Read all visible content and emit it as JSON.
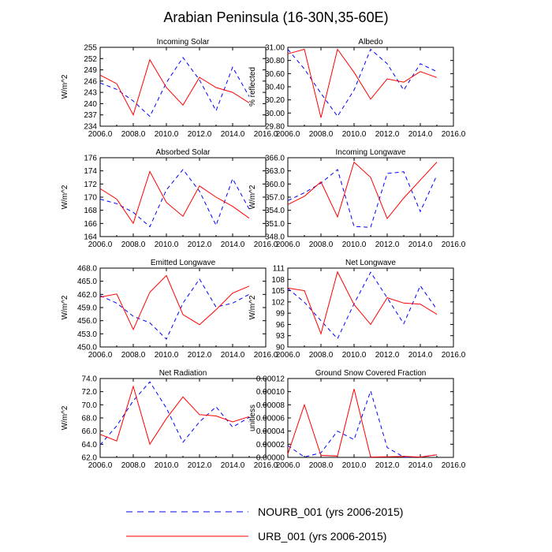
{
  "page_title": "Arabian Peninsula (16-30N,35-60E)",
  "colors": {
    "nourb": "#0000ff",
    "urb": "#ff0000",
    "axis": "#000000"
  },
  "legend": {
    "items": [
      {
        "key": "nourb",
        "label": "NOURB_001 (yrs 2006-2015)",
        "style": "dashed"
      },
      {
        "key": "urb",
        "label": "URB_001 (yrs 2006-2015)",
        "style": "solid"
      }
    ]
  },
  "chart_data": [
    {
      "type": "line",
      "title": "Incoming Solar",
      "ylabel": "W/m^2",
      "xlim": [
        2006,
        2016
      ],
      "xticks": [
        2006,
        2008,
        2010,
        2012,
        2014,
        2016
      ],
      "ylim": [
        234,
        255
      ],
      "yticks": [
        234,
        237,
        240,
        243,
        246,
        249,
        252,
        255
      ],
      "ydec": 0,
      "x": [
        2006,
        2007,
        2008,
        2009,
        2010,
        2011,
        2012,
        2013,
        2014,
        2015
      ],
      "series": [
        {
          "name": "NOURB_001 (yrs 2006-2015)",
          "values": [
            245.5,
            243.8,
            240.7,
            236.6,
            245.6,
            252.3,
            246.3,
            238.1,
            249.7,
            241.9
          ]
        },
        {
          "name": "URB_001 (yrs 2006-2015)",
          "values": [
            247.6,
            245.3,
            237.0,
            251.7,
            244.3,
            239.6,
            247.0,
            244.3,
            243.0,
            240.2
          ]
        }
      ]
    },
    {
      "type": "line",
      "title": "Albedo",
      "ylabel": "% reflected",
      "xlim": [
        2006,
        2016
      ],
      "xticks": [
        2006,
        2008,
        2010,
        2012,
        2014,
        2016
      ],
      "ylim": [
        29.8,
        31.0
      ],
      "yticks": [
        29.8,
        30.0,
        30.2,
        30.4,
        30.6,
        30.8,
        31.0
      ],
      "ydec": 2,
      "x": [
        2006,
        2007,
        2008,
        2009,
        2010,
        2011,
        2012,
        2013,
        2014,
        2015
      ],
      "series": [
        {
          "name": "NOURB_001 (yrs 2006-2015)",
          "values": [
            30.97,
            30.67,
            30.3,
            29.95,
            30.35,
            30.97,
            30.75,
            30.35,
            30.75,
            30.63
          ]
        },
        {
          "name": "URB_001 (yrs 2006-2015)",
          "values": [
            30.9,
            30.97,
            29.93,
            30.97,
            30.62,
            30.21,
            30.52,
            30.47,
            30.63,
            30.54
          ]
        }
      ]
    },
    {
      "type": "line",
      "title": "Absorbed Solar",
      "ylabel": "W/m^2",
      "xlim": [
        2006,
        2016
      ],
      "xticks": [
        2006,
        2008,
        2010,
        2012,
        2014,
        2016
      ],
      "ylim": [
        164,
        176
      ],
      "yticks": [
        164,
        166,
        168,
        170,
        172,
        174,
        176
      ],
      "ydec": 0,
      "x": [
        2006,
        2007,
        2008,
        2009,
        2010,
        2011,
        2012,
        2013,
        2014,
        2015
      ],
      "series": [
        {
          "name": "NOURB_001 (yrs 2006-2015)",
          "values": [
            169.7,
            169.0,
            167.7,
            165.5,
            171.1,
            174.2,
            170.9,
            165.7,
            172.8,
            168.2
          ]
        },
        {
          "name": "URB_001 (yrs 2006-2015)",
          "values": [
            171.3,
            169.7,
            166.0,
            173.9,
            169.2,
            167.1,
            171.7,
            170.0,
            168.6,
            166.8
          ]
        }
      ]
    },
    {
      "type": "line",
      "title": "Incoming Longwave",
      "ylabel": "W/m^2",
      "xlim": [
        2006,
        2016
      ],
      "xticks": [
        2006,
        2008,
        2010,
        2012,
        2014,
        2016
      ],
      "ylim": [
        348,
        366
      ],
      "yticks": [
        348,
        351,
        354,
        357,
        360,
        363,
        366
      ],
      "ydec": 1,
      "x": [
        2006,
        2007,
        2008,
        2009,
        2010,
        2011,
        2012,
        2013,
        2014,
        2015
      ],
      "series": [
        {
          "name": "NOURB_001 (yrs 2006-2015)",
          "values": [
            356.2,
            358.0,
            360.2,
            363.3,
            350.3,
            350.1,
            362.4,
            362.8,
            353.7,
            362.0
          ]
        },
        {
          "name": "URB_001 (yrs 2006-2015)",
          "values": [
            355.3,
            357.2,
            360.5,
            352.5,
            365.0,
            361.5,
            352.1,
            356.8,
            360.9,
            365.0
          ]
        }
      ]
    },
    {
      "type": "line",
      "title": "Emitted Longwave",
      "ylabel": "W/m^2",
      "xlim": [
        2006,
        2016
      ],
      "xticks": [
        2006,
        2008,
        2010,
        2012,
        2014,
        2016
      ],
      "ylim": [
        450,
        468
      ],
      "yticks": [
        450,
        453,
        456,
        459,
        462,
        465,
        468
      ],
      "ydec": 1,
      "x": [
        2006,
        2007,
        2008,
        2009,
        2010,
        2011,
        2012,
        2013,
        2014,
        2015
      ],
      "series": [
        {
          "name": "NOURB_001 (yrs 2006-2015)",
          "values": [
            461.7,
            460.0,
            457.0,
            455.5,
            451.8,
            460.0,
            465.5,
            459.1,
            460.0,
            462.0
          ]
        },
        {
          "name": "URB_001 (yrs 2006-2015)",
          "values": [
            461.4,
            462.1,
            454.0,
            462.5,
            466.3,
            457.4,
            455.1,
            458.5,
            462.3,
            463.9
          ]
        }
      ]
    },
    {
      "type": "line",
      "title": "Net Longwave",
      "ylabel": "W/m^2",
      "xlim": [
        2006,
        2016
      ],
      "xticks": [
        2006,
        2008,
        2010,
        2012,
        2014,
        2016
      ],
      "ylim": [
        90,
        111
      ],
      "yticks": [
        90,
        93,
        96,
        99,
        102,
        105,
        108,
        111
      ],
      "ydec": 0,
      "x": [
        2006,
        2007,
        2008,
        2009,
        2010,
        2011,
        2012,
        2013,
        2014,
        2015
      ],
      "series": [
        {
          "name": "NOURB_001 (yrs 2006-2015)",
          "values": [
            105.6,
            101.9,
            97.0,
            92.2,
            101.5,
            109.9,
            103.1,
            96.2,
            106.3,
            100.0
          ]
        },
        {
          "name": "URB_001 (yrs 2006-2015)",
          "values": [
            105.7,
            105.0,
            93.5,
            110.0,
            101.3,
            96.0,
            103.1,
            101.7,
            101.4,
            98.7
          ]
        }
      ]
    },
    {
      "type": "line",
      "title": "Net Radiation",
      "ylabel": "W/m^2",
      "xlim": [
        2006,
        2016
      ],
      "xticks": [
        2006,
        2008,
        2010,
        2012,
        2014,
        2016
      ],
      "ylim": [
        62,
        74
      ],
      "yticks": [
        62,
        64,
        66,
        68,
        70,
        72,
        74
      ],
      "ydec": 1,
      "x": [
        2006,
        2007,
        2008,
        2009,
        2010,
        2011,
        2012,
        2013,
        2014,
        2015
      ],
      "series": [
        {
          "name": "NOURB_001 (yrs 2006-2015)",
          "values": [
            63.9,
            66.8,
            70.6,
            73.5,
            69.5,
            64.3,
            67.4,
            69.7,
            66.6,
            68.1
          ]
        },
        {
          "name": "URB_001 (yrs 2006-2015)",
          "values": [
            65.5,
            64.5,
            72.8,
            64.0,
            67.9,
            71.2,
            68.5,
            68.3,
            67.4,
            68.2
          ]
        }
      ]
    },
    {
      "type": "line",
      "title": "Ground Snow Covered Fraction",
      "ylabel": "unitless",
      "xlim": [
        2006,
        2016
      ],
      "xticks": [
        2006,
        2008,
        2010,
        2012,
        2014,
        2016
      ],
      "ylim": [
        0,
        0.00012
      ],
      "yticks": [
        0,
        2e-05,
        4e-05,
        6e-05,
        8e-05,
        0.0001,
        0.00012
      ],
      "ydec": 5,
      "x": [
        2006,
        2007,
        2008,
        2009,
        2010,
        2011,
        2012,
        2013,
        2014,
        2015
      ],
      "series": [
        {
          "name": "NOURB_001 (yrs 2006-2015)",
          "values": [
            1.8e-05,
            5e-07,
            7e-06,
            4e-05,
            2.7e-05,
            0.000101,
            1.5e-05,
            5e-07,
            5e-07,
            4e-06
          ]
        },
        {
          "name": "URB_001 (yrs 2006-2015)",
          "values": [
            5e-06,
            8e-05,
            3e-06,
            2e-06,
            0.000104,
            5e-07,
            1e-06,
            1.5e-06,
            5e-07,
            4e-06
          ]
        }
      ]
    }
  ]
}
